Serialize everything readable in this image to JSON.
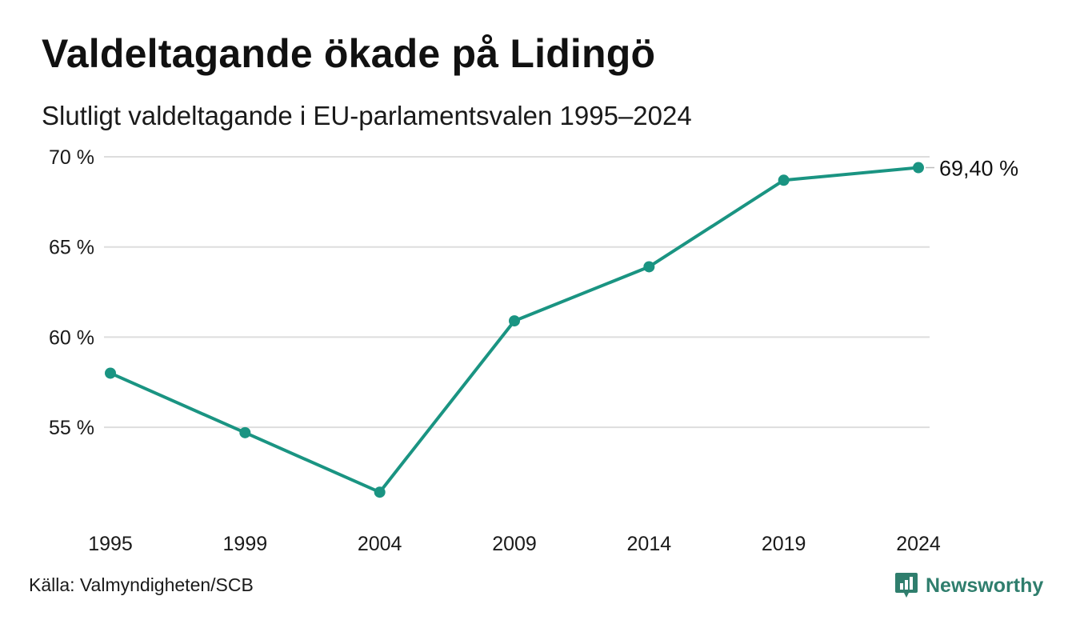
{
  "header": {
    "title": "Valdeltagande ökade på Lidingö",
    "subtitle": "Slutligt valdeltagande i EU-parlamentsvalen 1995–2024"
  },
  "footer": {
    "source": "Källa: Valmyndigheten/SCB",
    "brand": "Newsworthy",
    "brand_icon": "newsworthy-logo-icon"
  },
  "colors": {
    "line": "#1a9482",
    "grid": "#dddddd",
    "brand": "#2f7e6d"
  },
  "chart_data": {
    "type": "line",
    "title": "Valdeltagande ökade på Lidingö",
    "subtitle": "Slutligt valdeltagande i EU-parlamentsvalen 1995–2024",
    "x": [
      "1995",
      "1999",
      "2004",
      "2009",
      "2014",
      "2019",
      "2024"
    ],
    "series": [
      {
        "values": [
          58.0,
          54.7,
          51.4,
          60.9,
          63.9,
          68.7,
          69.4
        ]
      }
    ],
    "yticks": [
      55,
      60,
      65,
      70
    ],
    "ytick_labels": [
      "55 %",
      "60 %",
      "65 %",
      "70 %"
    ],
    "ylim": [
      50.3,
      70.0
    ],
    "grid": true,
    "legend": "none",
    "end_label": "69,40 %"
  }
}
